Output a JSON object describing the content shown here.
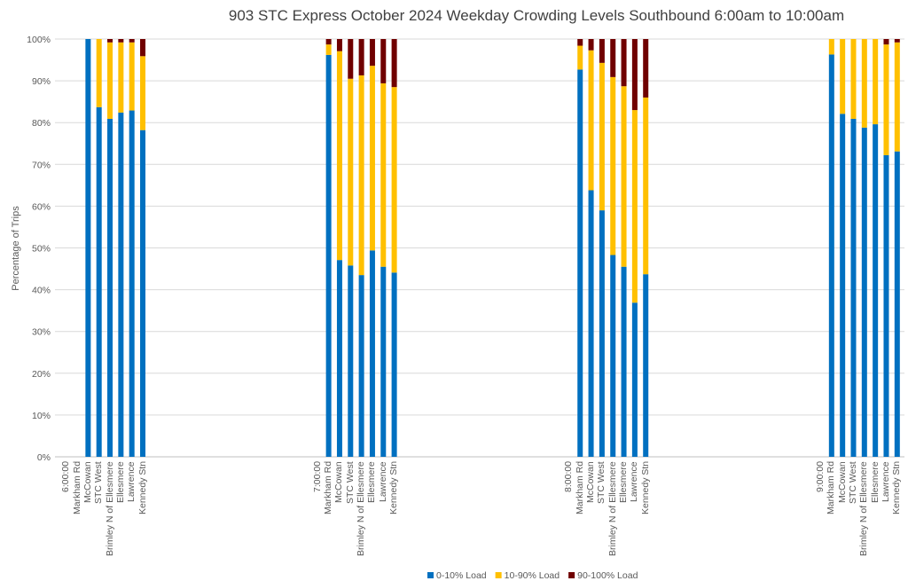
{
  "chart_data": {
    "type": "bar",
    "stacked": true,
    "percent_stacked": true,
    "title": "903 STC Express October 2024  Weekday Crowding Levels Southbound 6:00am to 10:00am",
    "xlabel": "",
    "ylabel": "Percentage of Trips",
    "ylim": [
      0,
      100
    ],
    "yticks": [
      "0%",
      "10%",
      "20%",
      "30%",
      "40%",
      "50%",
      "60%",
      "70%",
      "80%",
      "90%",
      "100%"
    ],
    "grid": true,
    "legend_position": "bottom",
    "groups": [
      "6:00:00",
      "7:00:00",
      "8:00:00",
      "9:00:00"
    ],
    "stops": [
      "Markham Rd",
      "McCowan",
      "STC West",
      "Brimley N of Ellesmere",
      "Ellesmere",
      "Lawrence",
      "Kennedy Stn"
    ],
    "series": [
      {
        "name": "0-10% Load",
        "color": "#0070C0",
        "values": [
          [
            null,
            100,
            83.7,
            80.9,
            82.4,
            82.9,
            78.2
          ],
          [
            96.2,
            47.1,
            45.8,
            43.5,
            49.4,
            45.5,
            44.1
          ],
          [
            92.7,
            63.8,
            59.0,
            48.3,
            45.5,
            36.9,
            43.7
          ],
          [
            96.3,
            82.1,
            80.9,
            78.8,
            79.6,
            72.2,
            73.1
          ]
        ]
      },
      {
        "name": "10-90% Load",
        "color": "#FFC000",
        "values": [
          [
            null,
            0,
            16.3,
            18.3,
            16.8,
            16.3,
            17.7
          ],
          [
            2.5,
            50.0,
            44.7,
            47.8,
            44.2,
            43.9,
            44.4
          ],
          [
            5.7,
            33.5,
            35.3,
            42.6,
            43.2,
            46.1,
            42.3
          ],
          [
            3.7,
            17.9,
            19.1,
            21.2,
            20.4,
            26.5,
            26.1
          ]
        ]
      },
      {
        "name": "90-100% Load",
        "color": "#700000",
        "values": [
          [
            null,
            0,
            0,
            0.8,
            0.8,
            0.8,
            4.1
          ],
          [
            1.3,
            2.9,
            9.5,
            8.7,
            6.4,
            10.6,
            11.5
          ],
          [
            1.6,
            2.7,
            5.7,
            9.1,
            11.3,
            17.0,
            14.0
          ],
          [
            0,
            0,
            0,
            0,
            0,
            1.3,
            0.8
          ]
        ]
      }
    ]
  }
}
